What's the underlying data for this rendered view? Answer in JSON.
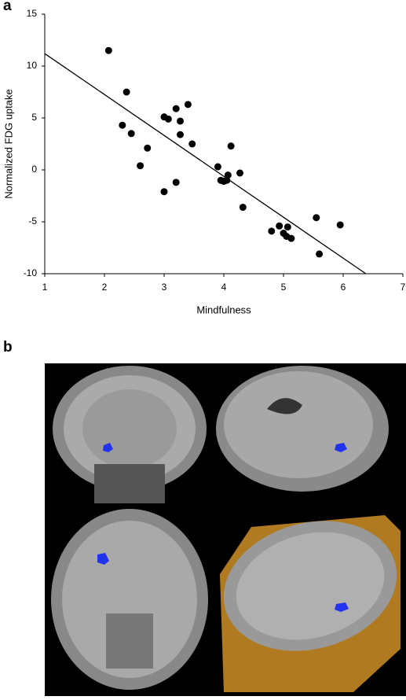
{
  "panel_labels": [
    "a",
    "b"
  ],
  "chart_data": {
    "type": "scatter",
    "x_label": "Mindfulness",
    "y_label": "Normalized FDG uptake",
    "x": [
      2.07,
      2.37,
      2.3,
      2.45,
      2.6,
      2.72,
      3.0,
      3.07,
      3.2,
      3.27,
      3.27,
      3.4,
      3.47,
      3.0,
      3.2,
      3.9,
      3.95,
      4.0,
      4.07,
      4.05,
      4.12,
      4.27,
      4.32,
      4.8,
      4.93,
      5.0,
      5.07,
      5.05,
      5.13,
      5.55,
      5.6,
      5.95
    ],
    "values": [
      11.5,
      7.5,
      4.3,
      3.5,
      0.4,
      2.1,
      5.1,
      4.9,
      5.9,
      4.7,
      3.4,
      6.3,
      2.5,
      -2.1,
      -1.2,
      0.3,
      -1.0,
      -1.1,
      -0.5,
      -1.0,
      2.3,
      -0.3,
      -3.6,
      -5.9,
      -5.4,
      -6.1,
      -5.5,
      -6.4,
      -6.6,
      -4.6,
      -8.1,
      -5.3
    ],
    "color": "#000000",
    "trend_line": {
      "x": [
        1,
        6.38
      ],
      "y": [
        11.2,
        -10
      ],
      "color": "#000000"
    },
    "xlim": [
      1,
      7
    ],
    "ylim": [
      -10,
      15
    ],
    "xticks": [
      1,
      2,
      3,
      4,
      5,
      6,
      7
    ],
    "yticks": [
      -10,
      -5,
      0,
      5,
      10,
      15
    ]
  }
}
